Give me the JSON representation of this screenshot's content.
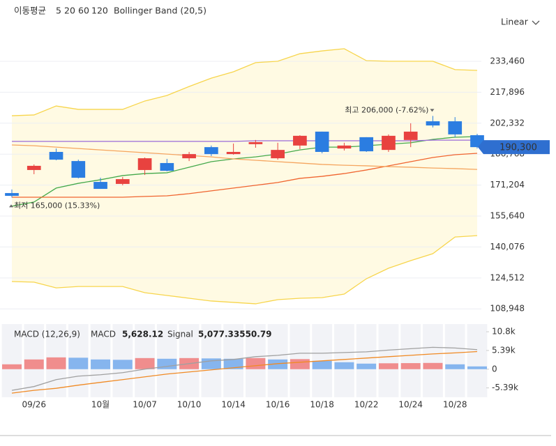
{
  "chart_data": [
    {
      "type": "candlestick",
      "legend_title": "이동평균",
      "scale": "Linear",
      "categories": [
        null,
        "09/26",
        null,
        null,
        "10월",
        null,
        "10/07",
        null,
        "10/10",
        null,
        "10/14",
        null,
        "10/16",
        null,
        "10/18",
        null,
        "10/22",
        null,
        "10/24",
        null,
        "10/28",
        null
      ],
      "open": [
        167200,
        178800,
        187900,
        183300,
        172800,
        171800,
        178800,
        182300,
        184700,
        190300,
        186800,
        191800,
        184700,
        191100,
        198100,
        189600,
        195300,
        188900,
        193900,
        203300,
        203300,
        196300
      ],
      "high": [
        169000,
        181600,
        189600,
        184000,
        174900,
        175300,
        185100,
        184400,
        187900,
        191100,
        192100,
        193900,
        192500,
        196300,
        198100,
        192500,
        195300,
        196700,
        202300,
        206000,
        205400,
        197000
      ],
      "low": [
        165000,
        176700,
        183700,
        174600,
        169300,
        171100,
        176300,
        178100,
        183300,
        185800,
        186500,
        190000,
        184000,
        189300,
        187200,
        188600,
        187900,
        187900,
        190300,
        200200,
        195300,
        189600
      ],
      "close": [
        165800,
        180900,
        184000,
        174900,
        169300,
        174200,
        184700,
        178400,
        186800,
        186800,
        187900,
        192800,
        188900,
        196000,
        187900,
        191100,
        188200,
        196000,
        198100,
        201200,
        196700,
        190300
      ],
      "up_color": "#e8423f",
      "down_color": "#2b7de1",
      "ylim": [
        105875,
        246780
      ],
      "yticks": [
        {
          "value": 108948,
          "label": "108,948"
        },
        {
          "value": 124512,
          "label": "124,512"
        },
        {
          "value": 140076,
          "label": "140,076"
        },
        {
          "value": 155640,
          "label": "155,640"
        },
        {
          "value": 171204,
          "label": "171,204"
        },
        {
          "value": 186768,
          "label": "186,768"
        },
        {
          "value": 202332,
          "label": "202,332"
        },
        {
          "value": 217896,
          "label": "217,896"
        },
        {
          "value": 233460,
          "label": "233,460"
        }
      ],
      "grid": true,
      "overlays": [
        {
          "name": "5",
          "color": "#43a94b",
          "values": [
            160600,
            162700,
            169700,
            172100,
            173900,
            176000,
            177000,
            177400,
            180200,
            183000,
            184400,
            185400,
            186800,
            188900,
            190300,
            190300,
            191000,
            191800,
            192500,
            194200,
            195300,
            195600
          ]
        },
        {
          "name": "20",
          "color": "#f0642f",
          "values": [
            165100,
            165100,
            165100,
            165100,
            165100,
            165100,
            165500,
            165800,
            166900,
            168300,
            169700,
            171100,
            172500,
            174600,
            175600,
            177000,
            178800,
            180900,
            183000,
            185100,
            186500,
            187200
          ]
        },
        {
          "name": "60",
          "color": "#f5a55f",
          "values": [
            191400,
            191000,
            190300,
            189600,
            188900,
            188200,
            187500,
            186800,
            186100,
            185400,
            184400,
            183700,
            183000,
            182300,
            181600,
            181200,
            180900,
            180500,
            180200,
            179800,
            179500,
            179100
          ]
        },
        {
          "name": "120",
          "color": "#9a6ad8",
          "values": [
            193200,
            193200,
            193200,
            193200,
            193200,
            193200,
            193200,
            193200,
            193200,
            193200,
            193200,
            193500,
            193500,
            193500,
            193500,
            193500,
            193500,
            193500,
            193500,
            193800,
            193800,
            193800
          ]
        }
      ],
      "band": {
        "name": "Bollinger Band (20,5)",
        "color": "#f7d54c",
        "fill": "#fffae3",
        "upper": [
          206100,
          206500,
          211000,
          209300,
          209300,
          209300,
          213500,
          216300,
          220800,
          225000,
          228200,
          232800,
          233500,
          237300,
          238700,
          239800,
          233800,
          233500,
          233500,
          233500,
          229300,
          228900
        ],
        "lower": [
          122700,
          122400,
          119500,
          120200,
          120200,
          120200,
          117100,
          115700,
          114300,
          112900,
          112200,
          111500,
          113600,
          114300,
          114600,
          116400,
          124100,
          129400,
          133200,
          136700,
          145100,
          145800
        ]
      },
      "annotations": [
        {
          "text": "최고 206,000 (-7.62%)",
          "value": 206000,
          "kind": "high"
        },
        {
          "text": "최저 165,000 (15.33%)",
          "value": 165000,
          "kind": "low"
        }
      ],
      "last_price": {
        "value": 190300,
        "label": "190,300",
        "color": "#2f6fd0"
      }
    },
    {
      "type": "macd",
      "title": "MACD (12,26,9)",
      "series": [
        {
          "name": "MACD",
          "color": "#a0a0a0",
          "value_label": "5,628.12",
          "values": [
            -6100,
            -5000,
            -3000,
            -2000,
            -1600,
            -1000,
            0,
            800,
            1600,
            2400,
            2800,
            3600,
            4000,
            4600,
            4600,
            4800,
            5000,
            5500,
            5900,
            6300,
            6100,
            5628.12
          ]
        },
        {
          "name": "Signal",
          "color": "#f08a24",
          "value_label": "5,077.33550.79",
          "values": [
            -6900,
            -6100,
            -5500,
            -4600,
            -3800,
            -3000,
            -2200,
            -1400,
            -800,
            -200,
            400,
            1000,
            1600,
            2000,
            2400,
            2800,
            3200,
            3600,
            4000,
            4400,
            4700,
            5077.3355
          ]
        }
      ],
      "histogram": {
        "up_color": "#f08d8d",
        "down_color": "#86b5ee",
        "values": [
          1400,
          2800,
          3400,
          3300,
          2800,
          2700,
          3200,
          3000,
          3200,
          3100,
          3000,
          3200,
          2800,
          2900,
          2400,
          2000,
          1600,
          1700,
          1750,
          1800,
          1400,
          800
        ]
      },
      "ylim": [
        -8075,
        13000
      ],
      "yticks": [
        {
          "value": -5390,
          "label": "-5.39k"
        },
        0,
        {
          "value": 5390,
          "label": "5.39k"
        },
        {
          "value": 10780,
          "label": "10.8k"
        }
      ]
    }
  ]
}
